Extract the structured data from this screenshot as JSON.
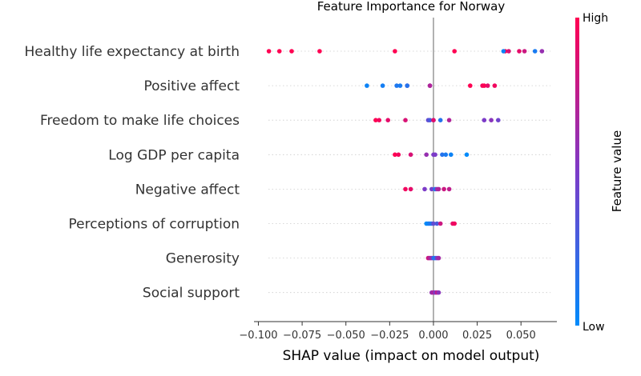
{
  "chart_data": {
    "type": "scatter",
    "title": "Feature Importance for Norway",
    "xlabel": "SHAP value (impact on model output)",
    "x_ticks": [
      -0.1,
      -0.075,
      -0.05,
      -0.025,
      0.0,
      0.025,
      0.05
    ],
    "x_tick_labels": [
      "−0.100",
      "−0.075",
      "−0.050",
      "−0.025",
      "0.000",
      "0.025",
      "0.050"
    ],
    "xlim": [
      -0.1025,
      0.0705
    ],
    "colorbar": {
      "label": "Feature value",
      "high": "High",
      "low": "Low",
      "low_color": "#008bfb",
      "mid_color": "#7c3bc8",
      "high_color": "#ff0052"
    },
    "grid": false,
    "legend": "colorbar-right",
    "series": [
      {
        "name": "Healthy life expectancy at birth",
        "points": [
          [
            -0.094,
            1
          ],
          [
            -0.088,
            1
          ],
          [
            -0.081,
            1
          ],
          [
            -0.065,
            1
          ],
          [
            -0.022,
            1
          ],
          [
            0.012,
            1
          ],
          [
            0.041,
            1
          ],
          [
            0.04,
            0.05
          ],
          [
            0.043,
            0.85
          ],
          [
            0.049,
            0.9
          ],
          [
            0.052,
            0.8
          ],
          [
            0.058,
            0.1
          ],
          [
            0.062,
            0.6
          ]
        ]
      },
      {
        "name": "Positive affect",
        "points": [
          [
            -0.038,
            0.05
          ],
          [
            -0.029,
            0.08
          ],
          [
            -0.021,
            0.12
          ],
          [
            -0.019,
            0.1
          ],
          [
            -0.015,
            0.5
          ],
          [
            -0.015,
            0.15
          ],
          [
            -0.002,
            0.55
          ],
          [
            -0.002,
            0.7
          ],
          [
            0.021,
            1
          ],
          [
            0.028,
            0.95
          ],
          [
            0.029,
            1
          ],
          [
            0.031,
            0.9
          ],
          [
            0.035,
            0.95
          ]
        ]
      },
      {
        "name": "Freedom to make life choices",
        "points": [
          [
            -0.033,
            1
          ],
          [
            -0.031,
            0.95
          ],
          [
            -0.026,
            0.9
          ],
          [
            -0.016,
            0.85
          ],
          [
            -0.003,
            0.4
          ],
          [
            -0.002,
            0.3
          ],
          [
            0.0,
            0.1
          ],
          [
            0.0,
            0.9
          ],
          [
            0.004,
            0.15
          ],
          [
            0.009,
            0.7
          ],
          [
            0.029,
            0.5
          ],
          [
            0.033,
            0.55
          ],
          [
            0.037,
            0.45
          ]
        ]
      },
      {
        "name": "Log GDP per capita",
        "points": [
          [
            -0.022,
            1
          ],
          [
            -0.02,
            0.95
          ],
          [
            -0.013,
            0.85
          ],
          [
            -0.004,
            0.6
          ],
          [
            0.0,
            0.5
          ],
          [
            0.001,
            0.5
          ],
          [
            0.005,
            0.15
          ],
          [
            0.007,
            0.1
          ],
          [
            0.01,
            0.05
          ],
          [
            0.019,
            0.0
          ]
        ]
      },
      {
        "name": "Negative affect",
        "points": [
          [
            -0.016,
            0.95
          ],
          [
            -0.013,
            0.9
          ],
          [
            -0.005,
            0.5
          ],
          [
            -0.001,
            0.45
          ],
          [
            0.001,
            0.1
          ],
          [
            0.002,
            0.6
          ],
          [
            0.003,
            0.7
          ],
          [
            0.006,
            0.8
          ],
          [
            0.009,
            0.75
          ]
        ]
      },
      {
        "name": "Perceptions of corruption",
        "points": [
          [
            -0.004,
            0.0
          ],
          [
            -0.003,
            0.05
          ],
          [
            -0.002,
            0.1
          ],
          [
            -0.001,
            0.15
          ],
          [
            0.0,
            0.4
          ],
          [
            0.002,
            0.3
          ],
          [
            0.004,
            0.8
          ],
          [
            0.011,
            0.9
          ],
          [
            0.012,
            0.95
          ]
        ]
      },
      {
        "name": "Generosity",
        "points": [
          [
            -0.003,
            0.8
          ],
          [
            -0.002,
            0.7
          ],
          [
            -0.001,
            0.6
          ],
          [
            0.0,
            0.2
          ],
          [
            0.001,
            0.1
          ],
          [
            0.002,
            0.5
          ],
          [
            0.003,
            0.65
          ]
        ]
      },
      {
        "name": "Social support",
        "points": [
          [
            -0.001,
            0.6
          ],
          [
            0.0,
            0.7
          ],
          [
            0.001,
            0.5
          ],
          [
            0.002,
            0.75
          ],
          [
            0.003,
            0.55
          ]
        ]
      }
    ]
  }
}
